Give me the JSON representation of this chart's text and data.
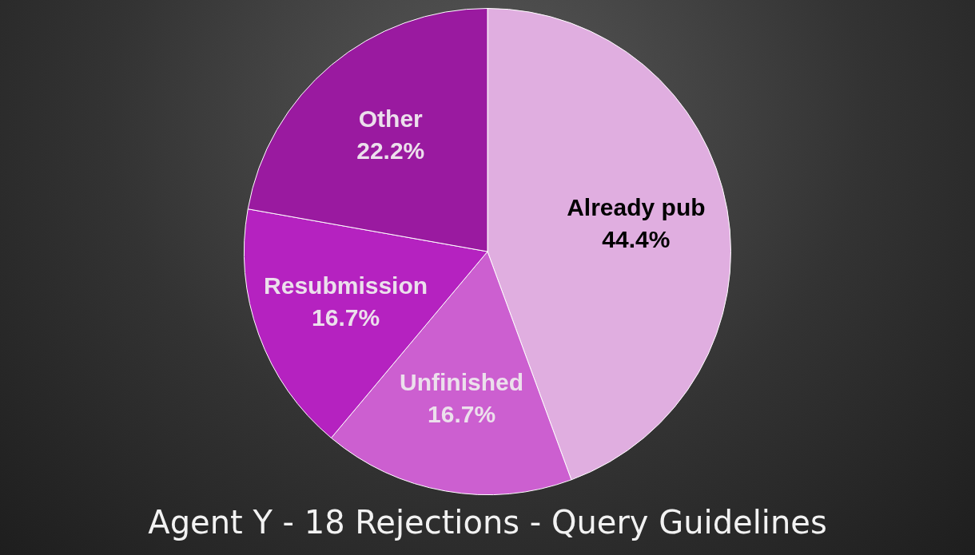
{
  "chart_data": {
    "type": "pie",
    "title": "Agent Y - 18 Rejections - Query Guidelines",
    "categories": [
      "Already pub",
      "Unfinished",
      "Resubmission",
      "Other"
    ],
    "values": [
      44.4,
      16.7,
      16.7,
      22.2
    ],
    "colors": [
      "#e0aee0",
      "#cc5fd0",
      "#b522c0",
      "#9a1aa0"
    ],
    "value_labels": [
      "44.4%",
      "16.7%",
      "16.7%",
      "22.2%"
    ],
    "legend": false
  }
}
